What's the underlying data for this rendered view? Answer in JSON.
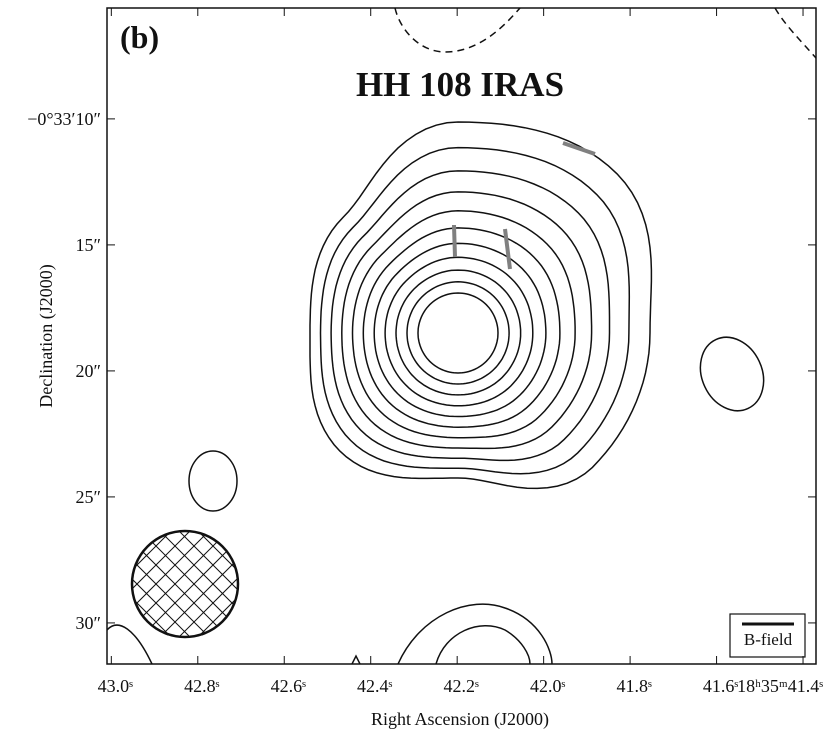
{
  "chart_data": {
    "type": "contour",
    "panel_label": "(b)",
    "title": "HH 108 IRAS",
    "x_label": "Right Ascension (J2000)",
    "y_label": "Declination (J2000)",
    "xlim": [
      43.01,
      41.37
    ],
    "xticks": [
      {
        "value": 43.0,
        "label": "43.0ˢ"
      },
      {
        "value": 42.8,
        "label": "42.8ˢ"
      },
      {
        "value": 42.6,
        "label": "42.6ˢ"
      },
      {
        "value": 42.4,
        "label": "42.4ˢ"
      },
      {
        "value": 42.2,
        "label": "42.2ˢ"
      },
      {
        "value": 42.0,
        "label": "42.0ˢ"
      },
      {
        "value": 41.8,
        "label": "41.8ˢ"
      },
      {
        "value": 41.6,
        "label": "41.6ˢ"
      },
      {
        "value": 41.4,
        "label": "18ʰ35ᵐ41.4ˢ"
      }
    ],
    "ylim": [
      5.6,
      31.63
    ],
    "yticks": [
      {
        "value": 10,
        "label": "−0°33′10″"
      },
      {
        "value": 15,
        "label": "15″"
      },
      {
        "value": 20,
        "label": "20″"
      },
      {
        "value": 25,
        "label": "25″"
      },
      {
        "value": 30,
        "label": "30″"
      }
    ],
    "legend": "B-field"
  }
}
